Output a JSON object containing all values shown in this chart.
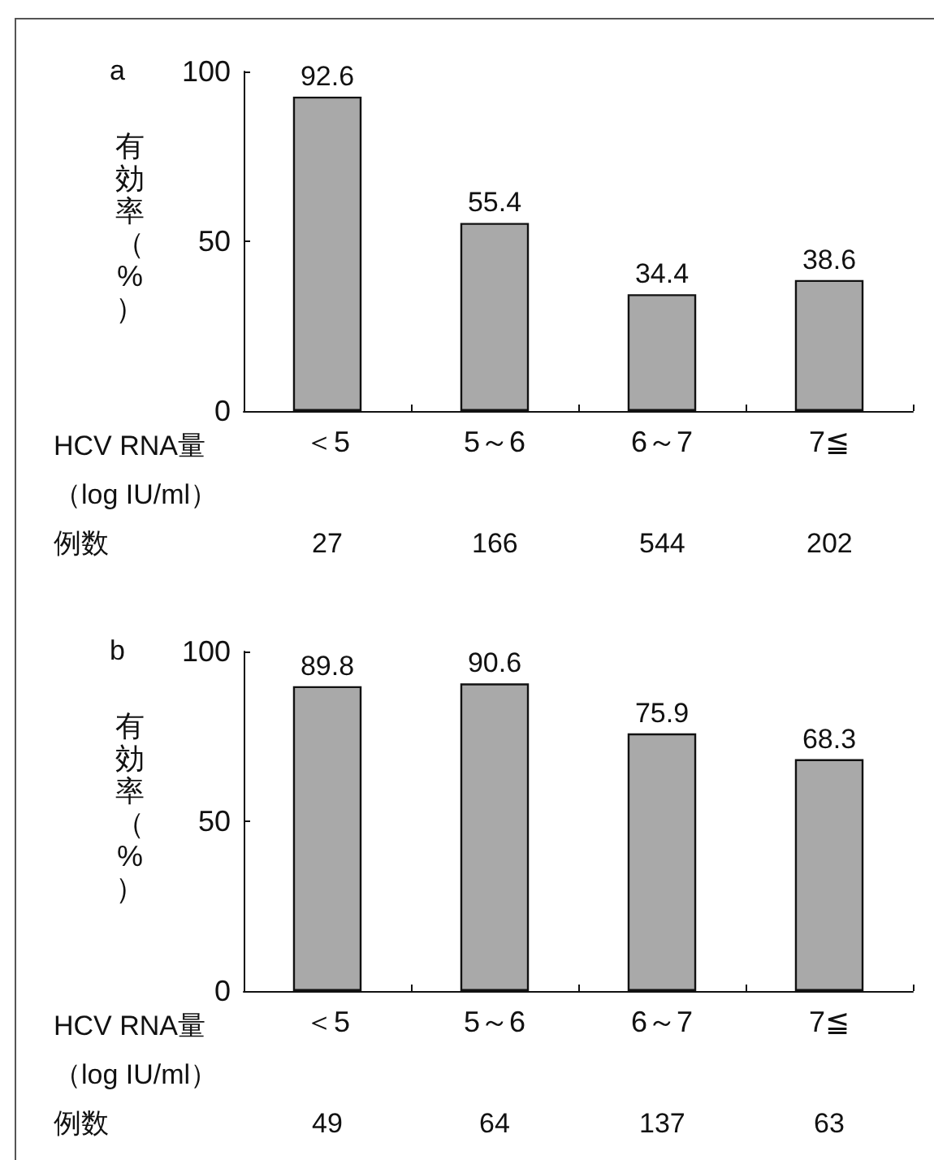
{
  "chart_data": [
    {
      "type": "bar",
      "title": "a",
      "ylabel": "有効率（%）",
      "xlabel": "HCV RNA量（log IU/ml）",
      "categories": [
        "＜5",
        "5～6",
        "6～7",
        "7≦"
      ],
      "values": [
        92.6,
        55.4,
        34.4,
        38.6
      ],
      "color": "#a9a9a9",
      "ylim": [
        0,
        100
      ],
      "yticks": [
        0,
        50,
        100
      ],
      "data_labels": true,
      "annotations": [
        "例数",
        "27",
        "166",
        "544",
        "202"
      ]
    },
    {
      "type": "bar",
      "title": "b",
      "ylabel": "有効率（%）",
      "xlabel": "HCV RNA量（log IU/ml）",
      "categories": [
        "＜5",
        "5～6",
        "6～7",
        "7≦"
      ],
      "values": [
        89.8,
        90.6,
        75.9,
        68.3
      ],
      "color": "#a9a9a9",
      "ylim": [
        0,
        100
      ],
      "yticks": [
        0,
        50,
        100
      ],
      "data_labels": true,
      "annotations": [
        "例数",
        "49",
        "64",
        "137",
        "63"
      ]
    }
  ]
}
